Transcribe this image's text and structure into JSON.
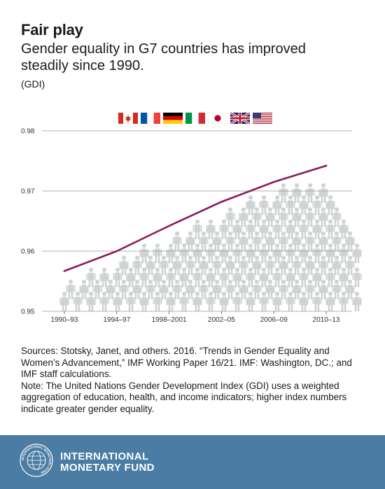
{
  "header": {
    "title": "Fair play",
    "subtitle": "Gender equality in G7 countries has improved steadily since 1990.",
    "unit": "(GDI)"
  },
  "legend": {
    "flags": [
      {
        "name": "canada-flag-icon",
        "colors": [
          "#d52b1e",
          "#ffffff"
        ]
      },
      {
        "name": "france-flag-icon",
        "colors": [
          "#0055a4",
          "#ffffff",
          "#ef4135"
        ]
      },
      {
        "name": "germany-flag-icon",
        "colors": [
          "#000000",
          "#dd0000",
          "#ffce00"
        ]
      },
      {
        "name": "italy-flag-icon",
        "colors": [
          "#009246",
          "#ffffff",
          "#ce2b37"
        ]
      },
      {
        "name": "japan-flag-icon",
        "colors": [
          "#ffffff",
          "#bc002d"
        ]
      },
      {
        "name": "uk-flag-icon",
        "colors": [
          "#012169",
          "#ffffff",
          "#c8102e"
        ]
      },
      {
        "name": "usa-flag-icon",
        "colors": [
          "#b22234",
          "#ffffff",
          "#3c3b6e"
        ]
      }
    ]
  },
  "chart_data": {
    "type": "line",
    "title": "",
    "xlabel": "",
    "ylabel": "",
    "categories": [
      "1990–93",
      "1994–97",
      "1998–2001",
      "2002–05",
      "2006–09",
      "2010–13"
    ],
    "series": [
      {
        "values": [
          0.9567,
          0.96,
          0.9642,
          0.9682,
          0.9715,
          0.9742
        ]
      }
    ],
    "ylim": [
      0.95,
      0.98
    ],
    "yticks": [
      "0.98",
      "0.97",
      "0.96",
      "0.95"
    ],
    "grid": true,
    "line_color": "#8b1a5e",
    "figure_color": "#cfd3d3",
    "gridline_color": "#9a9a9a"
  },
  "sources": {
    "citation": "Sources: Stotsky, Janet, and others. 2016. “Trends in Gender Equality and Women’s Advancement,” IMF Working Paper 16/21. IMF: Washington, DC.; and IMF staff calculations.",
    "note": "Note: The United Nations Gender Development Index (GDI) uses a weighted aggregation of education, health, and income indicators; higher index numbers indicate greater gender equality."
  },
  "footer": {
    "org_line1": "INTERNATIONAL",
    "org_line2": "MONETARY FUND",
    "logo_ring_text": "INTERNATIONAL MONETARY FUND",
    "background": "#4b7ca4"
  }
}
